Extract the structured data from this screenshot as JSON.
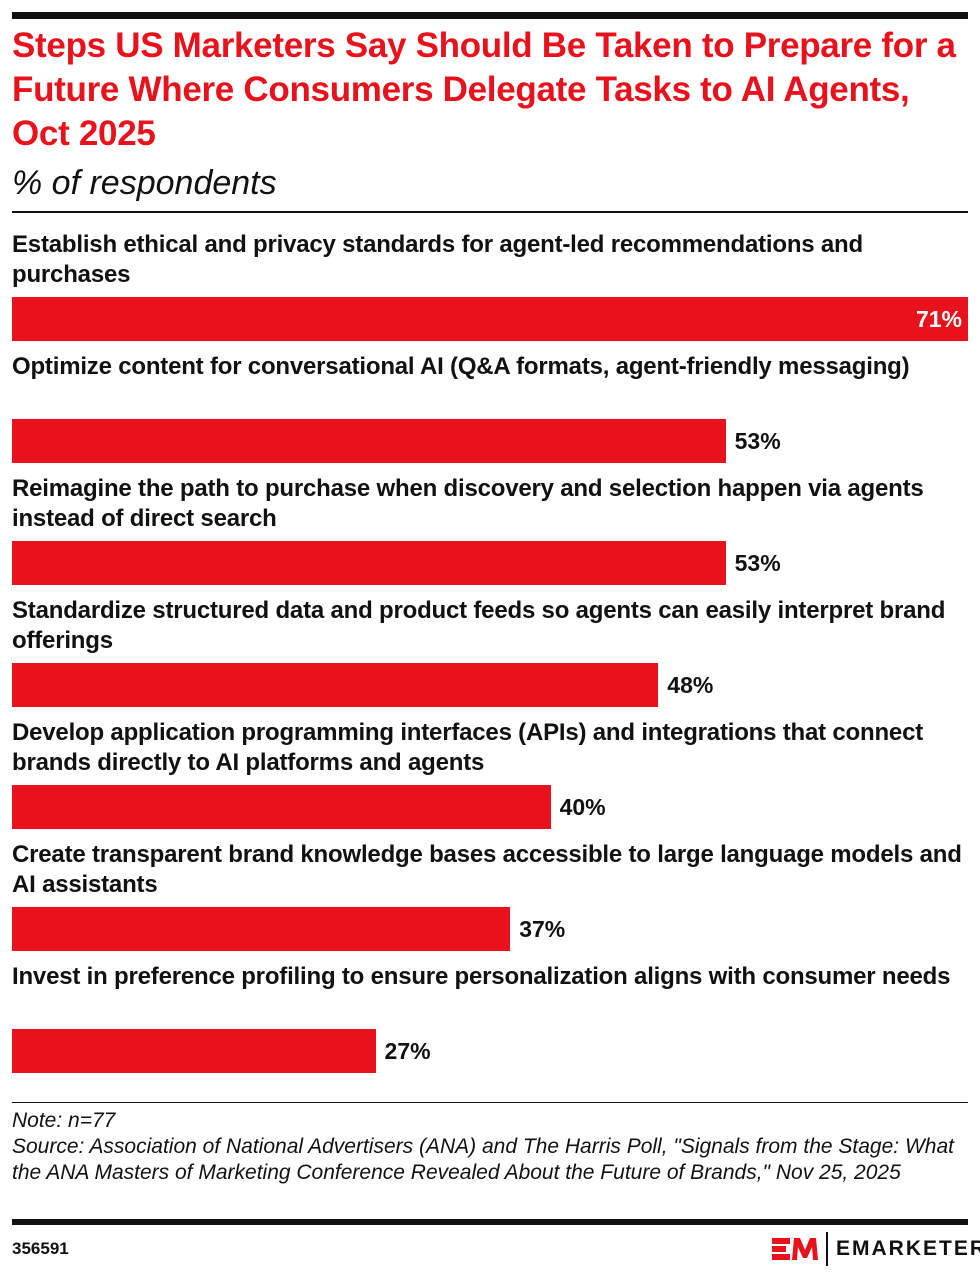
{
  "title": "Steps US Marketers Say Should Be Taken to Prepare for a Future Where Consumers Delegate Tasks to AI Agents, Oct 2025",
  "subtitle": "% of respondents",
  "chart_data": {
    "type": "bar",
    "orientation": "horizontal",
    "title": "Steps US Marketers Say Should Be Taken to Prepare for a Future Where Consumers Delegate Tasks to AI Agents, Oct 2025",
    "subtitle": "% of respondents",
    "categories": [
      "Establish ethical and privacy standards for agent-led recommendations and purchases",
      "Optimize content for conversational AI (Q&A formats, agent-friendly messaging)",
      "Reimagine the path to purchase when discovery and selection happen via agents instead of direct search",
      "Standardize structured data and product feeds so agents can easily interpret brand offerings",
      "Develop application programming interfaces (APIs) and integrations that connect brands directly to AI platforms and agents",
      "Create transparent brand knowledge bases accessible to large language models and AI assistants",
      "Invest in preference profiling to ensure personalization aligns with consumer needs"
    ],
    "values": [
      71,
      53,
      53,
      48,
      40,
      37,
      27
    ],
    "value_labels": [
      "71%",
      "53%",
      "53%",
      "48%",
      "40%",
      "37%",
      "27%"
    ],
    "bar_color": "#e8121c",
    "grid": false
  },
  "note": "Note: n=77",
  "source": "Source: Association of National Advertisers (ANA) and The Harris Poll, \"Signals from the Stage: What the ANA Masters of Marketing Conference Revealed About the Future of Brands,\" Nov 25, 2025",
  "chart_id": "356591",
  "brand": {
    "name": "EMARKETER",
    "color": "#e8121c"
  }
}
